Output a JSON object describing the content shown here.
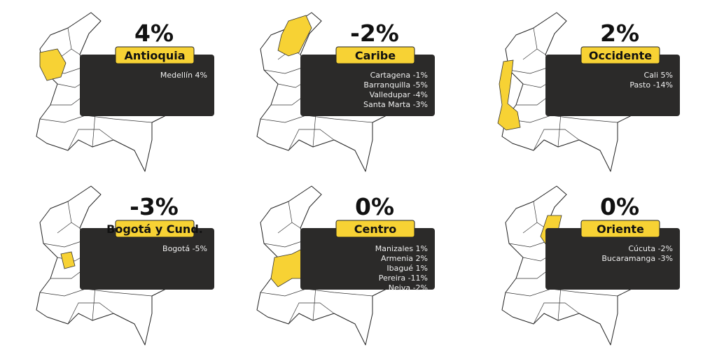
{
  "panels": [
    {
      "pct": "4%",
      "region": "Antioquia",
      "cities": [
        "Medellín 4%"
      ]
    },
    {
      "pct": "-2%",
      "region": "Caribe",
      "cities": [
        "Cartagena -1%",
        "Barranquilla -5%",
        "Valledupar -4%",
        "Santa Marta -3%"
      ]
    },
    {
      "pct": "2%",
      "region": "Occidente",
      "cities": [
        "Cali 5%",
        "Pasto -14%"
      ]
    },
    {
      "pct": "-3%",
      "region": "Bogotá y Cund.",
      "cities": [
        "Bogotá -5%"
      ]
    },
    {
      "pct": "0%",
      "region": "Centro",
      "cities": [
        "Manizales 1%",
        "Armenia 2%",
        "Ibagué 1%",
        "Pereira -11%",
        "Neiva -2%"
      ]
    },
    {
      "pct": "0%",
      "region": "Oriente",
      "cities": [
        "Cúcuta -2%",
        "Bucaramanga -3%"
      ]
    }
  ]
}
